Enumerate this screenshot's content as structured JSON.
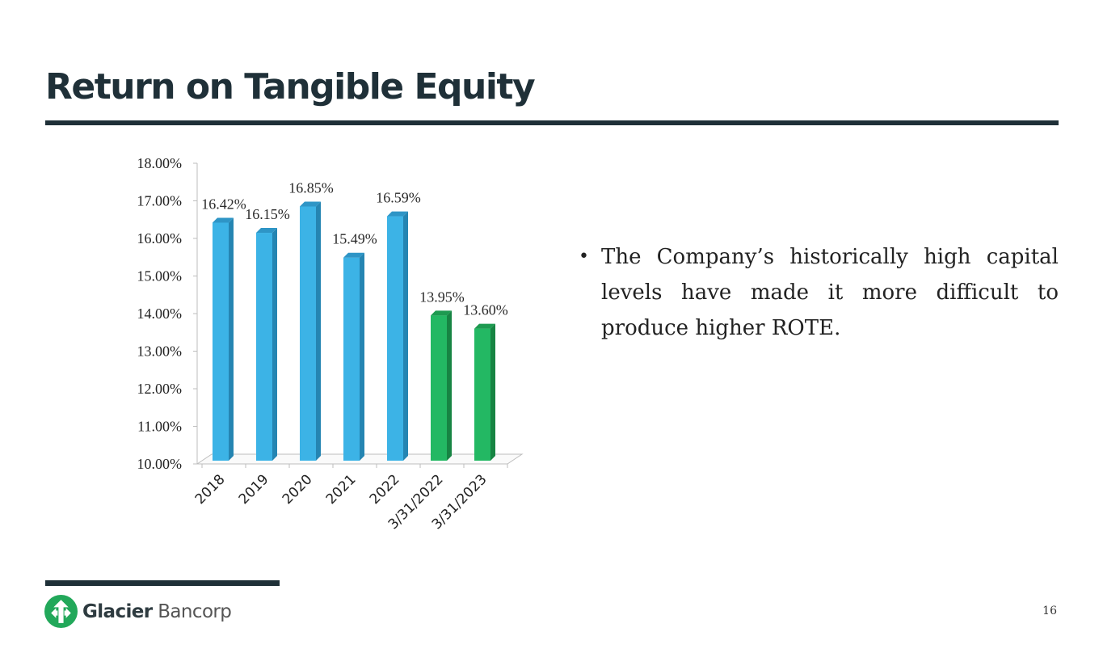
{
  "slide": {
    "title": "Return on Tangible Equity",
    "bullet": "The Company’s historically high capital levels have made it more difficult to produce higher ROTE.",
    "bullet_marker": "•",
    "page_number": "16",
    "logo": {
      "name_bold": "Glacier",
      "name_light": " Bancorp",
      "icon": "glacier-arrow-logo-icon"
    }
  },
  "colors": {
    "title": "#1f3038",
    "bar_blue": "#3cb3e6",
    "bar_blue_side": "#2585b2",
    "bar_blue_top": "#2e95c6",
    "bar_green": "#23b863",
    "bar_green_side": "#178443",
    "bar_green_top": "#1d9a50",
    "logo_green": "#22a85a"
  },
  "chart_data": {
    "type": "bar",
    "title": "",
    "xlabel": "",
    "ylabel": "",
    "ylim": [
      10,
      18
    ],
    "ytick_step": 1,
    "ytick_labels": [
      "10.00%",
      "11.00%",
      "12.00%",
      "13.00%",
      "14.00%",
      "15.00%",
      "16.00%",
      "17.00%",
      "18.00%"
    ],
    "categories": [
      "2018",
      "2019",
      "2020",
      "2021",
      "2022",
      "3/31/2022",
      "3/31/2023"
    ],
    "values": [
      16.42,
      16.15,
      16.85,
      15.49,
      16.59,
      13.95,
      13.6
    ],
    "data_labels": [
      "16.42%",
      "16.15%",
      "16.85%",
      "15.49%",
      "16.59%",
      "13.95%",
      "13.60%"
    ],
    "bar_colors": [
      "blue",
      "blue",
      "blue",
      "blue",
      "blue",
      "green",
      "green"
    ],
    "legend": "none",
    "grid": false
  }
}
